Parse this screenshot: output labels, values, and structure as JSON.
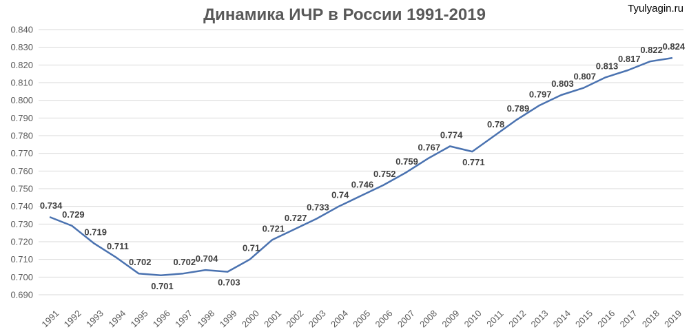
{
  "watermark": "Tyulyagin.ru",
  "chart_data": {
    "type": "line",
    "title": "Динамика ИЧР в России 1991-2019",
    "xlabel": "",
    "ylabel": "",
    "ylim": [
      0.69,
      0.84
    ],
    "y_ticks": [
      "0.690",
      "0.700",
      "0.710",
      "0.720",
      "0.730",
      "0.740",
      "0.750",
      "0.760",
      "0.770",
      "0.780",
      "0.790",
      "0.800",
      "0.810",
      "0.820",
      "0.830",
      "0.840"
    ],
    "grid": true,
    "series_color": "#4a72b0",
    "categories": [
      "1991",
      "1992",
      "1993",
      "1994",
      "1995",
      "1996",
      "1997",
      "1998",
      "1999",
      "2000",
      "2001",
      "2002",
      "2003",
      "2004",
      "2005",
      "2006",
      "2007",
      "2008",
      "2009",
      "2010",
      "2011",
      "2012",
      "2013",
      "2014",
      "2015",
      "2016",
      "2017",
      "2018",
      "2019"
    ],
    "values": [
      0.734,
      0.729,
      0.719,
      0.711,
      0.702,
      0.701,
      0.702,
      0.704,
      0.703,
      0.71,
      0.721,
      0.727,
      0.733,
      0.74,
      0.746,
      0.752,
      0.759,
      0.767,
      0.774,
      0.771,
      0.78,
      0.789,
      0.797,
      0.803,
      0.807,
      0.813,
      0.817,
      0.822,
      0.824
    ],
    "labels": [
      "0.734",
      "0.729",
      "0.719",
      "0.711",
      "0.702",
      "0.701",
      "0.702",
      "0.704",
      "0.703",
      "0.71",
      "0.721",
      "0.727",
      "0.733",
      "0.74",
      "0.746",
      "0.752",
      "0.759",
      "0.767",
      "0.774",
      "0.771",
      "0.78",
      "0.789",
      "0.797",
      "0.803",
      "0.807",
      "0.813",
      "0.817",
      "0.822",
      "0.824"
    ]
  }
}
